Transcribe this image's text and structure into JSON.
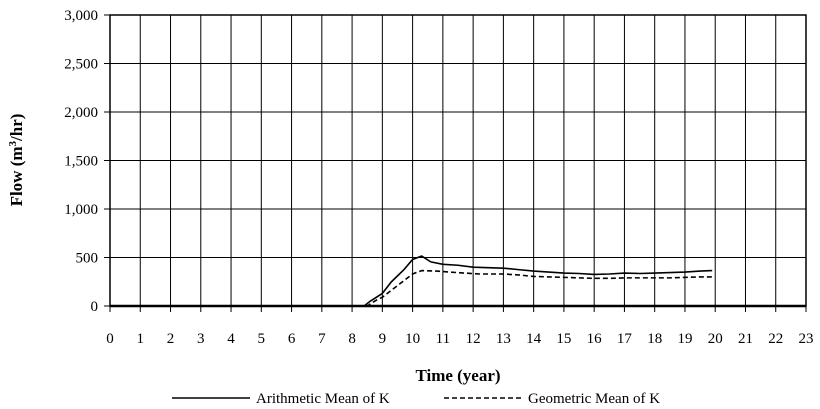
{
  "chart_data": {
    "type": "line",
    "xlabel": "Time (year)",
    "ylabel": "Flow (m³/hr)",
    "ylabel_parts": {
      "prefix": "Flow (m",
      "superscript": "3",
      "suffix": "/hr)"
    },
    "xlim": [
      0,
      23
    ],
    "ylim": [
      0,
      3000
    ],
    "x_ticks": [
      "0",
      "1",
      "2",
      "3",
      "4",
      "5",
      "6",
      "7",
      "8",
      "9",
      "10",
      "11",
      "12",
      "13",
      "14",
      "15",
      "16",
      "17",
      "18",
      "19",
      "20",
      "21",
      "22",
      "23"
    ],
    "y_ticks": [
      "0",
      "500",
      "1,000",
      "1,500",
      "2,000",
      "2,500",
      "3,000"
    ],
    "grid": true,
    "legend_position": "bottom",
    "series": [
      {
        "name": "Arithmetic Mean of K",
        "line_style": "solid",
        "color": "#000000",
        "points": [
          [
            0,
            0
          ],
          [
            8.4,
            0
          ],
          [
            8.6,
            50
          ],
          [
            8.8,
            90
          ],
          [
            9.0,
            130
          ],
          [
            9.3,
            250
          ],
          [
            9.7,
            370
          ],
          [
            10.0,
            480
          ],
          [
            10.3,
            515
          ],
          [
            10.6,
            455
          ],
          [
            11.0,
            430
          ],
          [
            11.5,
            420
          ],
          [
            12.0,
            400
          ],
          [
            12.5,
            395
          ],
          [
            13.0,
            390
          ],
          [
            13.5,
            375
          ],
          [
            14.0,
            360
          ],
          [
            14.5,
            350
          ],
          [
            15.0,
            340
          ],
          [
            15.5,
            335
          ],
          [
            16.0,
            325
          ],
          [
            16.5,
            330
          ],
          [
            17.0,
            340
          ],
          [
            17.5,
            335
          ],
          [
            18.0,
            340
          ],
          [
            18.5,
            345
          ],
          [
            19.0,
            350
          ],
          [
            19.5,
            360
          ],
          [
            19.9,
            365
          ]
        ]
      },
      {
        "name": "Geometric Mean of K",
        "line_style": "dashed",
        "color": "#000000",
        "points": [
          [
            0,
            0
          ],
          [
            8.5,
            0
          ],
          [
            8.8,
            60
          ],
          [
            9.0,
            90
          ],
          [
            9.5,
            210
          ],
          [
            10.0,
            330
          ],
          [
            10.3,
            365
          ],
          [
            10.8,
            360
          ],
          [
            11.2,
            350
          ],
          [
            11.7,
            340
          ],
          [
            12.2,
            330
          ],
          [
            13.0,
            330
          ],
          [
            13.5,
            320
          ],
          [
            14.0,
            305
          ],
          [
            14.5,
            300
          ],
          [
            15.0,
            295
          ],
          [
            15.5,
            290
          ],
          [
            16.0,
            285
          ],
          [
            16.5,
            285
          ],
          [
            17.0,
            290
          ],
          [
            17.5,
            290
          ],
          [
            18.0,
            290
          ],
          [
            18.5,
            290
          ],
          [
            19.0,
            295
          ],
          [
            19.5,
            300
          ],
          [
            19.9,
            300
          ]
        ]
      }
    ]
  }
}
